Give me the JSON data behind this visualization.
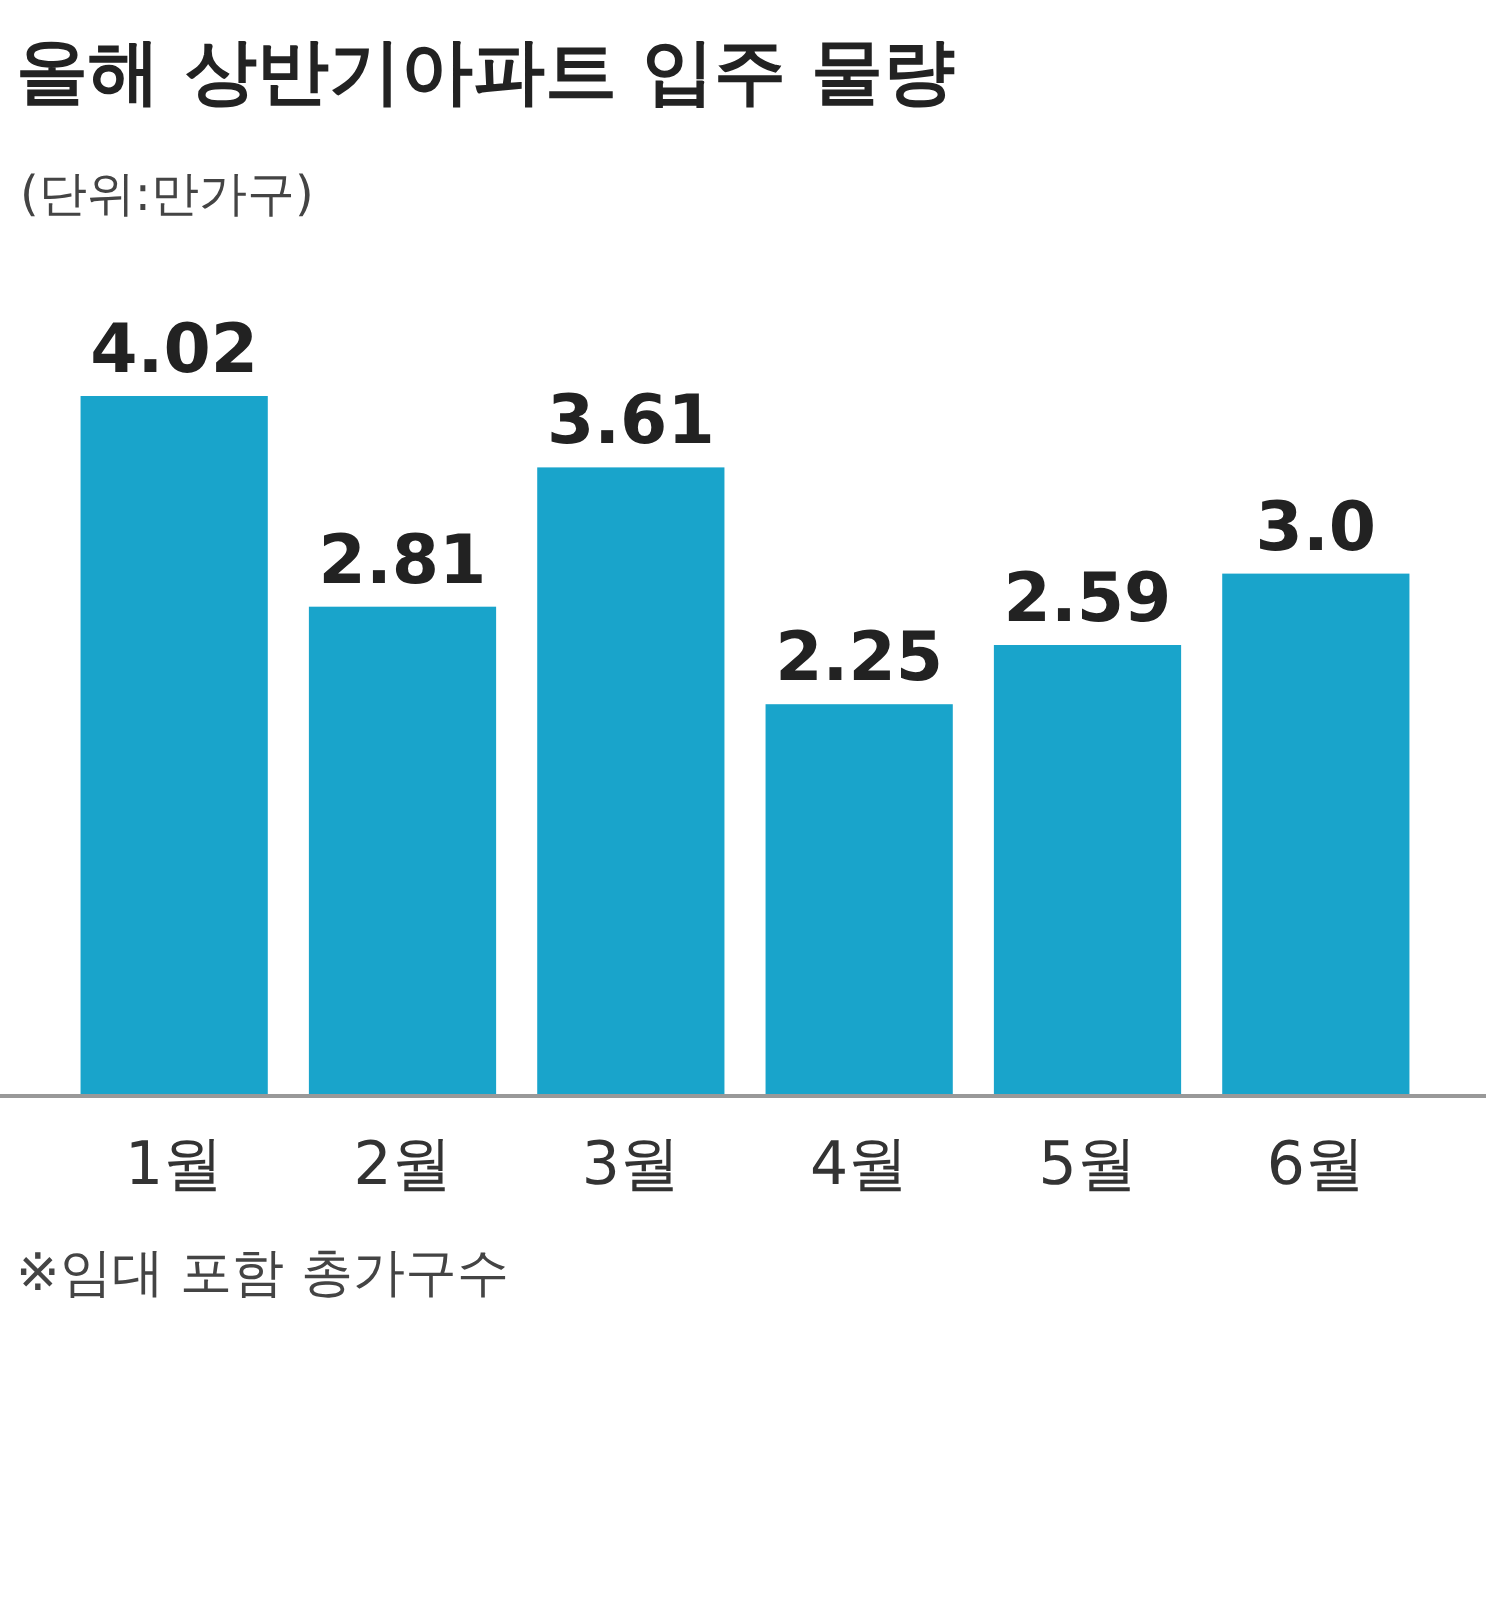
{
  "chart_data": {
    "type": "bar",
    "title": "올해 상반기아파트 입주 물량",
    "subtitle": "(단위:만가구)",
    "categories": [
      "1월",
      "2월",
      "3월",
      "4월",
      "5월",
      "6월"
    ],
    "values": [
      4.02,
      2.81,
      3.61,
      2.25,
      2.59,
      3.0
    ],
    "value_labels": [
      "4.02",
      "2.81",
      "3.61",
      "2.25",
      "2.59",
      "3.0"
    ],
    "color": "#19a4cb",
    "annotations": [
      "※임대 포함 총가구수"
    ]
  }
}
